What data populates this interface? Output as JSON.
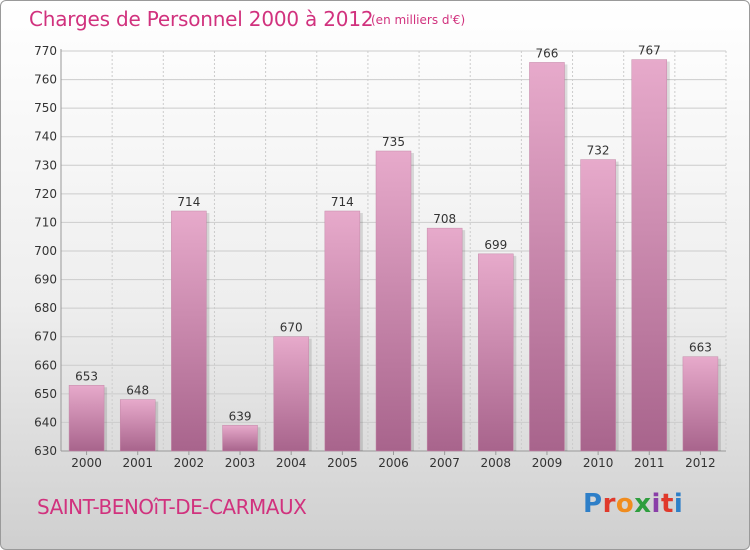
{
  "title": "Charges de Personnel 2000 à 2012",
  "unit": "(en milliers d'€)",
  "commune": "SAINT-BENOîT-DE-CARMAUX",
  "logo": {
    "letters": [
      "P",
      "r",
      "o",
      "x",
      "i",
      "t",
      "i"
    ],
    "colors": [
      "#2e7fc8",
      "#e0392b",
      "#f08c1e",
      "#2e9e3e",
      "#8a3fa8",
      "#e0392b",
      "#2e7fc8"
    ]
  },
  "colors": {
    "bar_light": "#e7aacb",
    "bar_dark": "#a8648c",
    "text": "#333333",
    "accent": "#d1327e",
    "grid": "#cccccc"
  },
  "chart_data": {
    "type": "bar",
    "title": "Charges de Personnel 2000 à 2012",
    "subtitle": "(en milliers d'€)",
    "categories": [
      "2000",
      "2001",
      "2002",
      "2003",
      "2004",
      "2005",
      "2006",
      "2007",
      "2008",
      "2009",
      "2010",
      "2011",
      "2012"
    ],
    "values": [
      653,
      648,
      714,
      639,
      670,
      714,
      735,
      708,
      699,
      766,
      732,
      767,
      663
    ],
    "ylim": [
      630,
      770
    ],
    "yticks": [
      630,
      640,
      650,
      660,
      670,
      680,
      690,
      700,
      710,
      720,
      730,
      740,
      750,
      760,
      770
    ],
    "grid": true
  }
}
